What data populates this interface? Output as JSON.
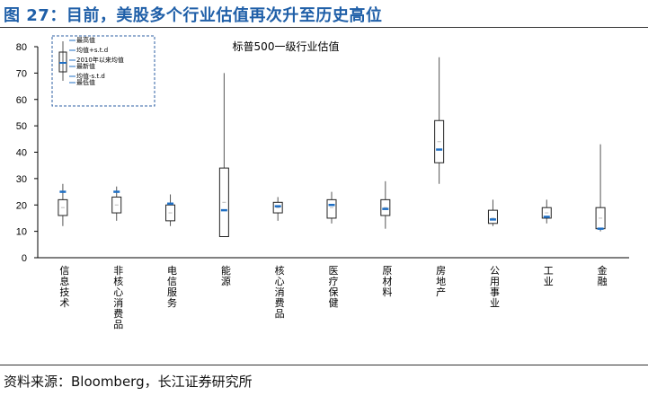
{
  "figure_title": "图 27：目前，美股多个行业估值再次升至历史高位",
  "source": "资料来源：Bloomberg，长江证券研究所",
  "chart_data": {
    "type": "box",
    "title": "标普500一级行业估值",
    "ylim": [
      0,
      80
    ],
    "yticks": [
      0,
      10,
      20,
      30,
      40,
      50,
      60,
      70,
      80
    ],
    "legend": {
      "placement": "top-left",
      "entries": [
        "最高值",
        "均值+s.t.d",
        "2010年以来均值",
        "最新值",
        "均值-s.t.d",
        "最低值"
      ]
    },
    "categories": [
      "信息技术",
      "非核心消费品",
      "电信服务",
      "能源",
      "核心消费品",
      "医疗保健",
      "原材料",
      "房地产",
      "公用事业",
      "工业",
      "金融"
    ],
    "series": [
      {
        "name": "最高值",
        "values": [
          28,
          27,
          24,
          70,
          23,
          25,
          29,
          76,
          22,
          22,
          43
        ]
      },
      {
        "name": "均值+s.t.d",
        "values": [
          22,
          23,
          20,
          34,
          21,
          22,
          22,
          52,
          18,
          19,
          19
        ]
      },
      {
        "name": "2010年以来均值",
        "values": [
          19,
          20,
          17,
          21,
          19,
          19,
          19,
          44,
          15,
          17,
          15
        ]
      },
      {
        "name": "最新值",
        "values": [
          25,
          25,
          20.5,
          18,
          19.5,
          20,
          18.5,
          41,
          14.5,
          15.5,
          11
        ]
      },
      {
        "name": "均值-s.t.d",
        "values": [
          16,
          17,
          14,
          8,
          17,
          15,
          16,
          36,
          13,
          15,
          11
        ]
      },
      {
        "name": "最低值",
        "values": [
          12,
          14,
          12,
          8,
          14,
          13,
          11,
          28,
          12,
          13,
          10
        ]
      }
    ]
  },
  "colors": {
    "title": "#1f5fa8",
    "marker": "#1f6fc4",
    "box": "#222222",
    "whisker": "#555555",
    "legend_border": "#2c5fa3"
  }
}
